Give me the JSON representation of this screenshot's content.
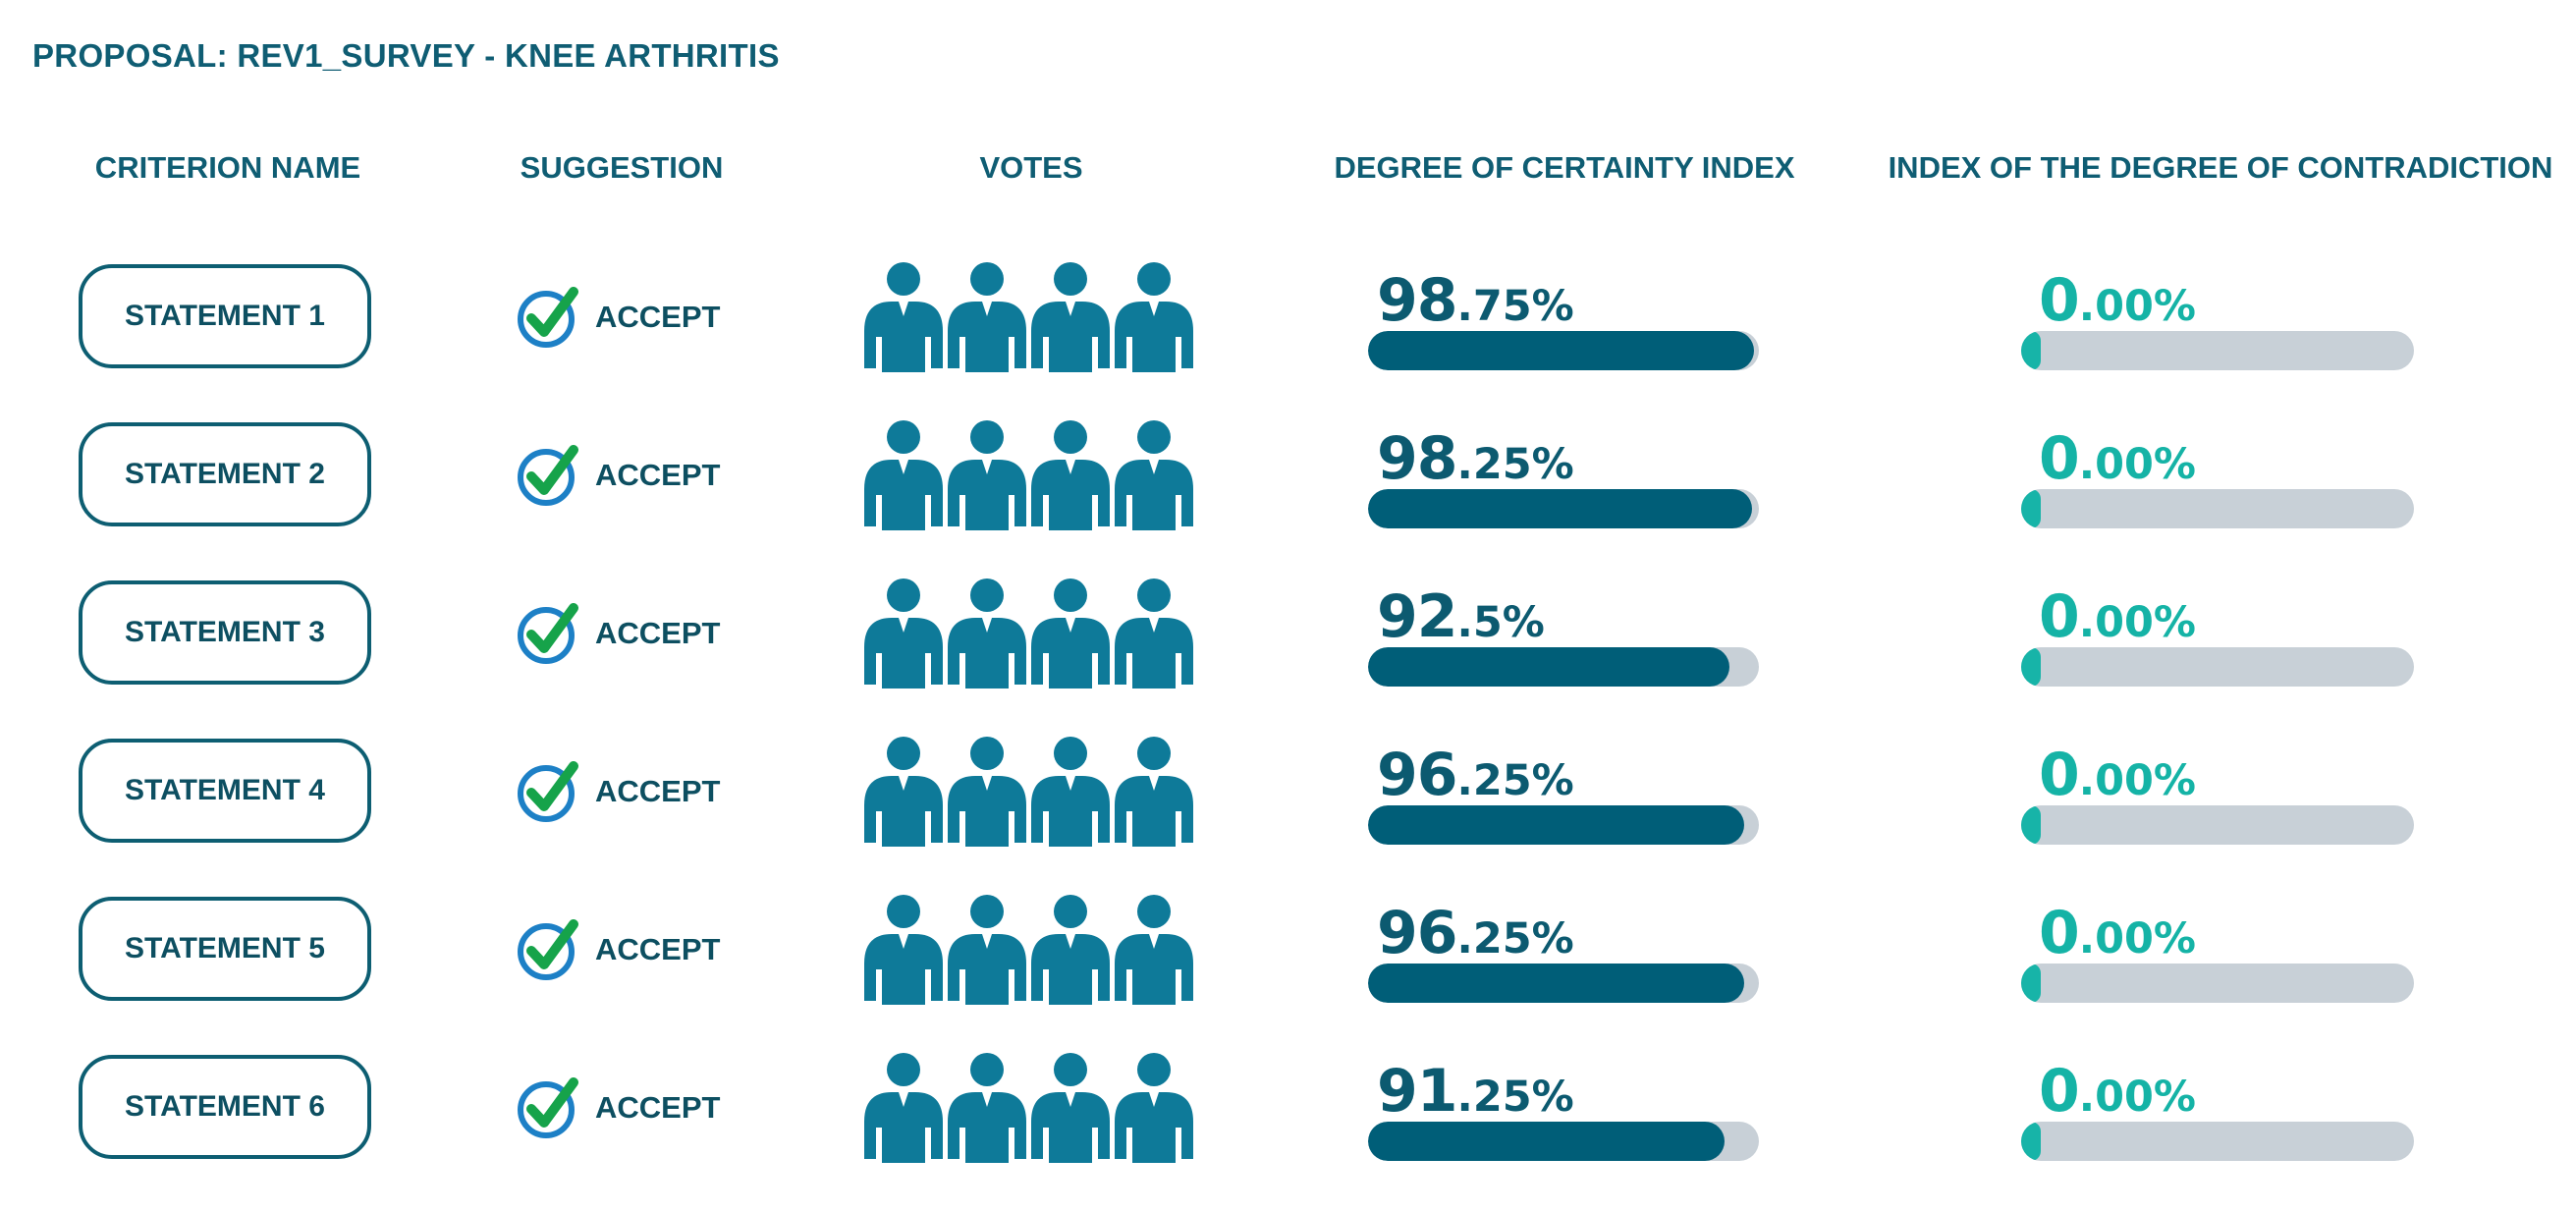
{
  "title": "PROPOSAL: REV1_SURVEY - KNEE ARTHRITIS",
  "headers": {
    "criterion": "CRITERION NAME",
    "suggestion": "SUGGESTION",
    "votes": "VOTES",
    "certainty": "DEGREE OF CERTAINTY INDEX",
    "contradiction": "INDEX OF THE DEGREE OF CONTRADICTION"
  },
  "icons": {
    "check": "check-circle-icon",
    "person": "person-icon"
  },
  "colors": {
    "primary": "#005e78",
    "accent": "#17b4a8",
    "track": "#c8d0d7",
    "check_green": "#16a34a",
    "check_ring": "#1d80c6",
    "person": "#0e7a99"
  },
  "chart_data": {
    "type": "table",
    "title": "PROPOSAL: REV1_SURVEY - KNEE ARTHRITIS",
    "columns": [
      "CRITERION NAME",
      "SUGGESTION",
      "VOTES",
      "DEGREE OF CERTAINTY INDEX",
      "INDEX OF THE DEGREE OF CONTRADICTION"
    ],
    "rows": [
      {
        "name": "STATEMENT 1",
        "suggestion": "ACCEPT",
        "votes": 4,
        "certainty": 98.75,
        "cert_int": "98",
        "cert_dec": ".75%",
        "contradiction": 0.0,
        "cont_int": "0",
        "cont_dec": ".00%"
      },
      {
        "name": "STATEMENT 2",
        "suggestion": "ACCEPT",
        "votes": 4,
        "certainty": 98.25,
        "cert_int": "98",
        "cert_dec": ".25%",
        "contradiction": 0.0,
        "cont_int": "0",
        "cont_dec": ".00%"
      },
      {
        "name": "STATEMENT 3",
        "suggestion": "ACCEPT",
        "votes": 4,
        "certainty": 92.5,
        "cert_int": "92",
        "cert_dec": ".5%",
        "contradiction": 0.0,
        "cont_int": "0",
        "cont_dec": ".00%"
      },
      {
        "name": "STATEMENT 4",
        "suggestion": "ACCEPT",
        "votes": 4,
        "certainty": 96.25,
        "cert_int": "96",
        "cert_dec": ".25%",
        "contradiction": 0.0,
        "cont_int": "0",
        "cont_dec": ".00%"
      },
      {
        "name": "STATEMENT 5",
        "suggestion": "ACCEPT",
        "votes": 4,
        "certainty": 96.25,
        "cert_int": "96",
        "cert_dec": ".25%",
        "contradiction": 0.0,
        "cont_int": "0",
        "cont_dec": ".00%"
      },
      {
        "name": "STATEMENT 6",
        "suggestion": "ACCEPT",
        "votes": 4,
        "certainty": 91.25,
        "cert_int": "91",
        "cert_dec": ".25%",
        "contradiction": 0.0,
        "cont_int": "0",
        "cont_dec": ".00%"
      }
    ]
  }
}
